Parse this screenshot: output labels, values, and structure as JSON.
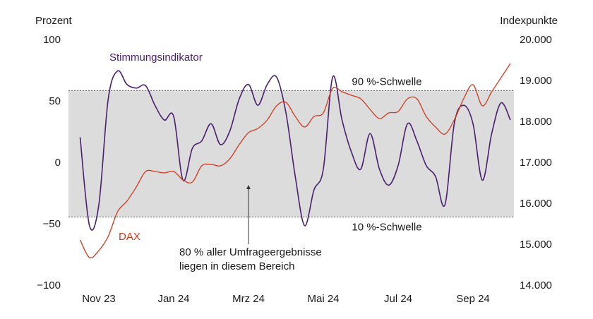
{
  "chart_data": {
    "type": "line",
    "ylabel": "Prozent",
    "y2label": "Indexpunkte",
    "categories": [
      null,
      null,
      "Nov 23",
      null,
      null,
      null,
      null,
      null,
      null,
      null,
      "Jan 24",
      null,
      null,
      null,
      null,
      null,
      null,
      null,
      "Mrz 24",
      null,
      null,
      null,
      null,
      null,
      null,
      null,
      "Mai 24",
      null,
      null,
      null,
      null,
      null,
      null,
      null,
      "Jul 24",
      null,
      null,
      null,
      null,
      null,
      null,
      null,
      "Sep 24",
      null,
      null,
      null,
      null
    ],
    "series": [
      {
        "name": "Stimmungsindikator",
        "color": "#4b1e6e",
        "axis": "y",
        "values": [
          21,
          -51,
          -34,
          52,
          75,
          64,
          61,
          63,
          47,
          35,
          38,
          -14,
          12,
          18,
          32,
          15,
          26,
          52,
          64,
          47,
          64,
          70,
          41,
          -11,
          -51,
          -22,
          -5,
          70,
          35,
          9,
          -5,
          24,
          -5,
          -18,
          -2,
          32,
          18,
          -2,
          -11,
          -34,
          32,
          47,
          32,
          -14,
          24,
          49,
          35
        ]
      },
      {
        "name": "DAX",
        "color": "#d03a1e",
        "axis": "y2",
        "values": [
          15121,
          14690,
          14862,
          15207,
          15810,
          16069,
          16414,
          16793,
          16793,
          16759,
          16793,
          16586,
          16534,
          16931,
          16966,
          16931,
          17103,
          17448,
          17741,
          17845,
          18052,
          18397,
          18483,
          18138,
          17879,
          18138,
          18224,
          18828,
          18741,
          18655,
          18569,
          18310,
          18086,
          18224,
          18259,
          18569,
          18569,
          18138,
          17879,
          17707,
          18052,
          18569,
          18914,
          18397,
          18741,
          19086,
          19431
        ]
      }
    ],
    "ylim": [
      -100,
      100
    ],
    "yticks": [
      100,
      50,
      0,
      {
        "value": -50,
        "label": "−50"
      },
      {
        "value": -100,
        "label": "−100"
      }
    ],
    "y2lim": [
      14000,
      20000
    ],
    "y2ticks": [
      {
        "value": 20000,
        "label": "20.000"
      },
      {
        "value": 19000,
        "label": "19.000"
      },
      {
        "value": 18000,
        "label": "18.000"
      },
      {
        "value": 17000,
        "label": "17.000"
      },
      {
        "value": 16000,
        "label": "16.000"
      },
      {
        "value": 15000,
        "label": "15.000"
      },
      {
        "value": 14000,
        "label": "14.000"
      }
    ],
    "thresholds": [
      {
        "label": "90 %-Schwelle",
        "value": 59
      },
      {
        "label": "10 %-Schwelle",
        "value": -44
      }
    ],
    "band_color": "#dcdcdc",
    "annotation": [
      "80 % aller Umfrageergebnisse",
      "liegen in diesem Bereich"
    ]
  }
}
